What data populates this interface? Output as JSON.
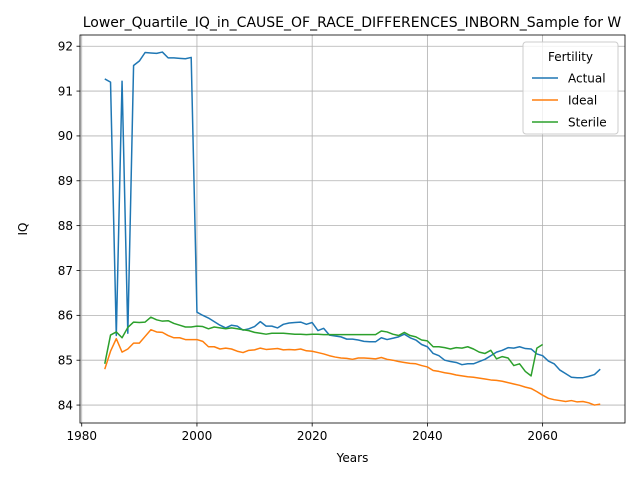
{
  "chart_data": {
    "type": "line",
    "title": "Lower_Quartile_IQ_in_CAUSE_OF_RACE_DIFFERENCES_INBORN_Sample for W",
    "xlabel": "Years",
    "ylabel": "IQ",
    "xlim": [
      1979.7,
      2074.3
    ],
    "ylim": [
      83.6,
      92.25
    ],
    "xticks": [
      1980,
      2000,
      2020,
      2040,
      2060
    ],
    "yticks": [
      84,
      85,
      86,
      87,
      88,
      89,
      90,
      91,
      92
    ],
    "grid": true,
    "legend": {
      "title": "Fertility",
      "placement": "top-right"
    },
    "series": [
      {
        "name": "Actual",
        "color": "#1f77b4",
        "x": [
          1984,
          1985,
          1986,
          1987,
          1988,
          1989,
          1990,
          1991,
          1992,
          1993,
          1994,
          1995,
          1996,
          1997,
          1998,
          1999,
          2000,
          2001,
          2002,
          2003,
          2004,
          2005,
          2006,
          2007,
          2008,
          2009,
          2010,
          2011,
          2012,
          2013,
          2014,
          2015,
          2016,
          2017,
          2018,
          2019,
          2020,
          2021,
          2022,
          2023,
          2024,
          2025,
          2026,
          2027,
          2028,
          2029,
          2030,
          2031,
          2032,
          2033,
          2034,
          2035,
          2036,
          2037,
          2038,
          2039,
          2040,
          2041,
          2042,
          2043,
          2044,
          2045,
          2046,
          2047,
          2048,
          2049,
          2050,
          2051,
          2052,
          2053,
          2054,
          2055,
          2056,
          2057,
          2058,
          2059,
          2060,
          2061,
          2062,
          2063,
          2064,
          2065,
          2066,
          2067,
          2068,
          2069,
          2070
        ],
        "values": [
          91.27,
          91.2,
          85.55,
          91.22,
          85.6,
          91.57,
          91.67,
          91.86,
          91.85,
          91.84,
          91.87,
          91.74,
          91.74,
          91.73,
          91.72,
          91.75,
          86.07,
          86.0,
          85.94,
          85.86,
          85.78,
          85.72,
          85.78,
          85.76,
          85.67,
          85.7,
          85.75,
          85.86,
          85.76,
          85.76,
          85.72,
          85.8,
          85.83,
          85.84,
          85.85,
          85.8,
          85.84,
          85.66,
          85.71,
          85.56,
          85.54,
          85.52,
          85.47,
          85.47,
          85.45,
          85.42,
          85.41,
          85.41,
          85.5,
          85.46,
          85.49,
          85.52,
          85.58,
          85.5,
          85.45,
          85.35,
          85.3,
          85.15,
          85.1,
          85.0,
          84.97,
          84.95,
          84.9,
          84.92,
          84.92,
          84.97,
          85.02,
          85.1,
          85.18,
          85.22,
          85.28,
          85.27,
          85.3,
          85.26,
          85.25,
          85.14,
          85.1,
          84.98,
          84.92,
          84.78,
          84.7,
          84.62,
          84.61,
          84.61,
          84.64,
          84.68,
          84.8
        ]
      },
      {
        "name": "Ideal",
        "color": "#ff7f0e",
        "x": [
          1984,
          1985,
          1986,
          1987,
          1988,
          1989,
          1990,
          1991,
          1992,
          1993,
          1994,
          1995,
          1996,
          1997,
          1998,
          1999,
          2000,
          2001,
          2002,
          2003,
          2004,
          2005,
          2006,
          2007,
          2008,
          2009,
          2010,
          2011,
          2012,
          2013,
          2014,
          2015,
          2016,
          2017,
          2018,
          2019,
          2020,
          2021,
          2022,
          2023,
          2024,
          2025,
          2026,
          2027,
          2028,
          2029,
          2030,
          2031,
          2032,
          2033,
          2034,
          2035,
          2036,
          2037,
          2038,
          2039,
          2040,
          2041,
          2042,
          2043,
          2044,
          2045,
          2046,
          2047,
          2048,
          2049,
          2050,
          2051,
          2052,
          2053,
          2054,
          2055,
          2056,
          2057,
          2058,
          2059,
          2060,
          2061,
          2062,
          2063,
          2064,
          2065,
          2066,
          2067,
          2068,
          2069,
          2070
        ],
        "values": [
          84.8,
          85.2,
          85.48,
          85.18,
          85.25,
          85.38,
          85.38,
          85.53,
          85.68,
          85.63,
          85.62,
          85.55,
          85.5,
          85.5,
          85.46,
          85.46,
          85.46,
          85.42,
          85.3,
          85.3,
          85.25,
          85.27,
          85.25,
          85.2,
          85.17,
          85.22,
          85.23,
          85.27,
          85.24,
          85.25,
          85.26,
          85.23,
          85.24,
          85.23,
          85.25,
          85.21,
          85.2,
          85.17,
          85.14,
          85.1,
          85.07,
          85.05,
          85.04,
          85.02,
          85.05,
          85.05,
          85.04,
          85.03,
          85.06,
          85.02,
          85.0,
          84.97,
          84.95,
          84.93,
          84.92,
          84.88,
          84.85,
          84.77,
          84.75,
          84.72,
          84.7,
          84.67,
          84.65,
          84.63,
          84.62,
          84.6,
          84.58,
          84.56,
          84.55,
          84.53,
          84.5,
          84.47,
          84.44,
          84.4,
          84.37,
          84.3,
          84.22,
          84.15,
          84.12,
          84.1,
          84.08,
          84.1,
          84.07,
          84.08,
          84.05,
          84.0,
          84.02
        ]
      },
      {
        "name": "Sterile",
        "color": "#2ca02c",
        "x": [
          1984,
          1985,
          1986,
          1987,
          1988,
          1989,
          1990,
          1991,
          1992,
          1993,
          1994,
          1995,
          1996,
          1997,
          1998,
          1999,
          2000,
          2001,
          2002,
          2003,
          2004,
          2005,
          2006,
          2007,
          2008,
          2009,
          2010,
          2011,
          2012,
          2013,
          2014,
          2015,
          2016,
          2017,
          2018,
          2019,
          2020,
          2021,
          2022,
          2023,
          2024,
          2025,
          2026,
          2027,
          2028,
          2029,
          2030,
          2031,
          2032,
          2033,
          2034,
          2035,
          2036,
          2037,
          2038,
          2039,
          2040,
          2041,
          2042,
          2043,
          2044,
          2045,
          2046,
          2047,
          2048,
          2049,
          2050,
          2051,
          2052,
          2053,
          2054,
          2055,
          2056,
          2057,
          2058,
          2059,
          2060
        ],
        "values": [
          84.92,
          85.56,
          85.63,
          85.5,
          85.73,
          85.85,
          85.84,
          85.85,
          85.96,
          85.9,
          85.87,
          85.88,
          85.82,
          85.78,
          85.74,
          85.74,
          85.76,
          85.75,
          85.7,
          85.74,
          85.72,
          85.7,
          85.72,
          85.7,
          85.68,
          85.66,
          85.62,
          85.6,
          85.58,
          85.6,
          85.6,
          85.6,
          85.59,
          85.58,
          85.58,
          85.57,
          85.58,
          85.58,
          85.57,
          85.57,
          85.57,
          85.57,
          85.57,
          85.57,
          85.57,
          85.57,
          85.57,
          85.57,
          85.65,
          85.63,
          85.58,
          85.55,
          85.62,
          85.55,
          85.52,
          85.45,
          85.43,
          85.3,
          85.3,
          85.28,
          85.25,
          85.28,
          85.27,
          85.3,
          85.25,
          85.18,
          85.15,
          85.22,
          85.03,
          85.08,
          85.05,
          84.88,
          84.92,
          84.75,
          84.65,
          85.27,
          85.35
        ]
      }
    ]
  }
}
